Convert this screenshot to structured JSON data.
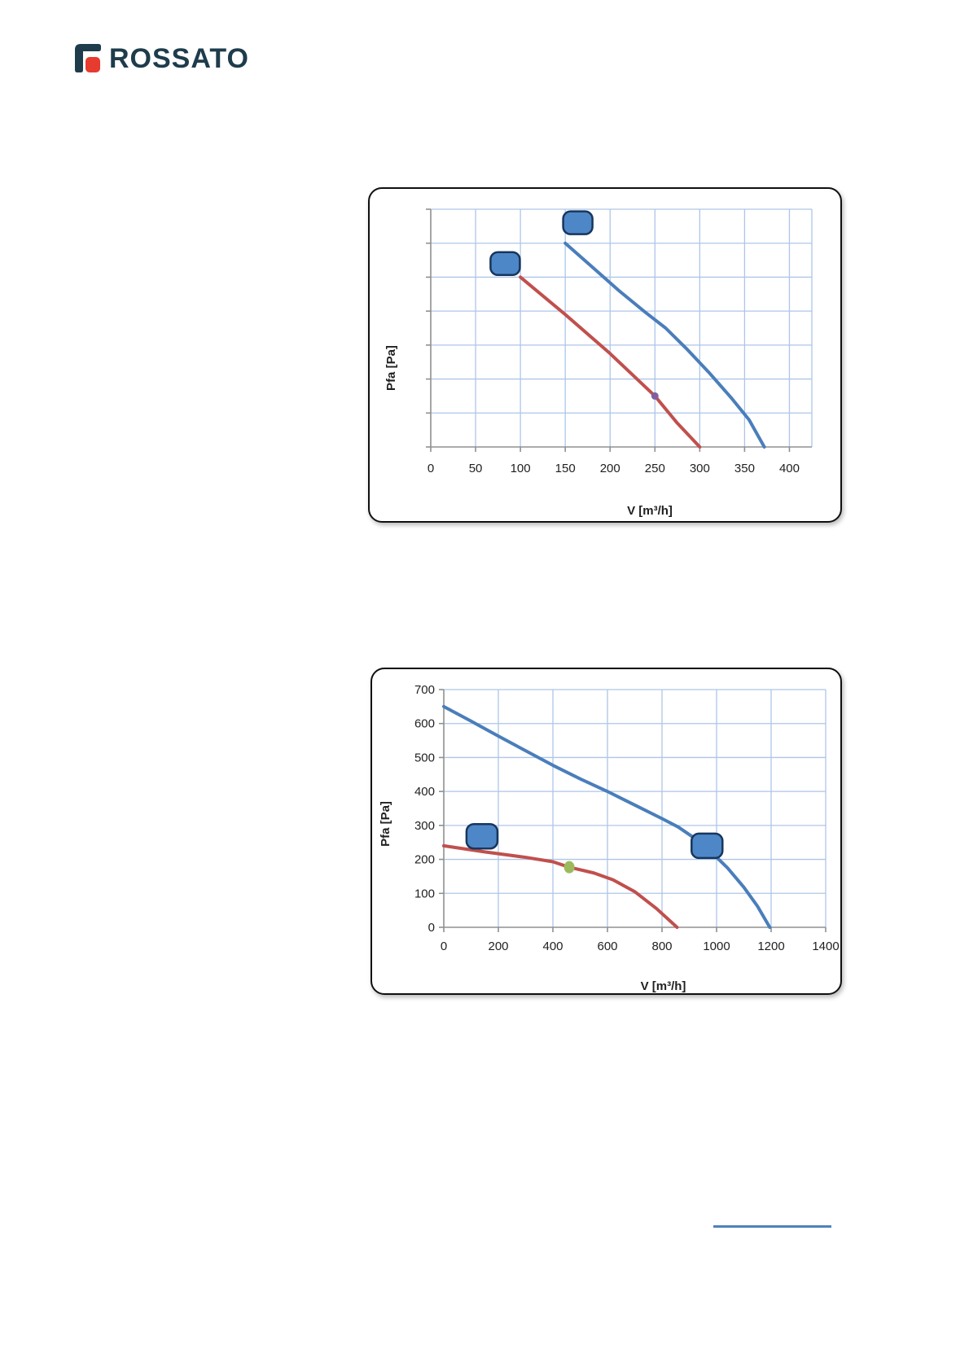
{
  "logo": {
    "text": "ROSSATO",
    "text_color": "#1e3c4b",
    "icon_bracket_color": "#1e3c4b",
    "icon_square_color": "#e63b2e"
  },
  "footer": {
    "link_underline_color": "#4f81bd"
  },
  "chart_data": [
    {
      "type": "line",
      "title": "",
      "xlabel": "V [m³/h]",
      "ylabel": "Pfa [Pa]",
      "x_min": 0,
      "x_max": 425,
      "x_ticks": [
        0,
        50,
        100,
        150,
        200,
        250,
        300,
        350,
        400
      ],
      "x_tick_labels_visible": true,
      "y_min": 0,
      "y_max": 7,
      "y_ticks": [
        0,
        1,
        2,
        3,
        4,
        5,
        6,
        7
      ],
      "y_tick_labels_visible": false,
      "grid": true,
      "grid_color": "#aec6e8",
      "axis_color": "#909090",
      "text_color": "#1f1f1f",
      "legend": "none",
      "series": [
        {
          "name": "high-speed-curve",
          "color": "#4a7ebb",
          "points": [
            [
              150,
              6.0
            ],
            [
              180,
              5.3
            ],
            [
              210,
              4.6
            ],
            [
              240,
              3.95
            ],
            [
              262,
              3.5
            ],
            [
              285,
              2.9
            ],
            [
              310,
              2.2
            ],
            [
              335,
              1.45
            ],
            [
              355,
              0.8
            ],
            [
              372,
              0
            ]
          ]
        },
        {
          "name": "low-speed-curve",
          "color": "#c0504d",
          "points": [
            [
              100,
              5.0
            ],
            [
              150,
              3.9
            ],
            [
              200,
              2.75
            ],
            [
              250,
              1.5
            ],
            [
              275,
              0.7
            ],
            [
              300,
              0
            ]
          ]
        }
      ],
      "markers": [
        {
          "shape": "ellipse",
          "color": "#7d60a0",
          "x": 250,
          "y": 1.5,
          "rx": 4.5,
          "ry": 4.5
        }
      ],
      "badges": [
        {
          "x": 83,
          "y": 5.4
        },
        {
          "x": 164,
          "y": 6.6
        }
      ],
      "badge_fill": "#4e87c7",
      "badge_stroke": "#17365d"
    },
    {
      "type": "line",
      "title": "",
      "xlabel": "V [m³/h]",
      "ylabel": "Pfa [Pa]",
      "x_min": 0,
      "x_max": 1400,
      "x_ticks": [
        0,
        200,
        400,
        600,
        800,
        1000,
        1200,
        1400
      ],
      "x_tick_labels_visible": true,
      "y_min": 0,
      "y_max": 700,
      "y_ticks": [
        0,
        100,
        200,
        300,
        400,
        500,
        600,
        700
      ],
      "y_tick_labels_visible": true,
      "grid": true,
      "grid_color": "#aec6e8",
      "axis_color": "#909090",
      "text_color": "#1f1f1f",
      "legend": "none",
      "series": [
        {
          "name": "high-speed-curve",
          "color": "#4a7ebb",
          "points": [
            [
              0,
              650
            ],
            [
              100,
              607
            ],
            [
              200,
              563
            ],
            [
              300,
              520
            ],
            [
              400,
              477
            ],
            [
              500,
              437
            ],
            [
              600,
              400
            ],
            [
              700,
              360
            ],
            [
              800,
              320
            ],
            [
              860,
              295
            ],
            [
              920,
              262
            ],
            [
              980,
              222
            ],
            [
              1040,
              175
            ],
            [
              1100,
              118
            ],
            [
              1150,
              62
            ],
            [
              1195,
              0
            ]
          ]
        },
        {
          "name": "low-speed-curve",
          "color": "#c0504d",
          "points": [
            [
              0,
              240
            ],
            [
              150,
              222
            ],
            [
              300,
              206
            ],
            [
              400,
              193
            ],
            [
              460,
              177
            ],
            [
              550,
              160
            ],
            [
              620,
              140
            ],
            [
              700,
              105
            ],
            [
              780,
              55
            ],
            [
              855,
              0
            ]
          ]
        }
      ],
      "markers": [
        {
          "shape": "ellipse",
          "color": "#9cba5d",
          "x": 460,
          "y": 177,
          "rx": 6.5,
          "ry": 7.5
        }
      ],
      "badges": [
        {
          "x": 140,
          "y": 268
        },
        {
          "x": 965,
          "y": 240
        }
      ],
      "badge_fill": "#4e87c7",
      "badge_stroke": "#17365d"
    }
  ]
}
